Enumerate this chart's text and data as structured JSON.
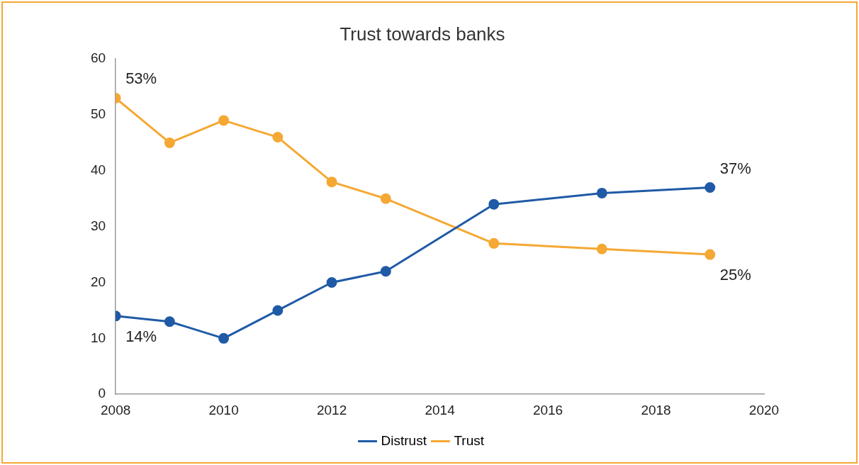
{
  "chart_data": {
    "type": "line",
    "title": "Trust towards banks",
    "x": [
      2008,
      2009,
      2010,
      2011,
      2012,
      2013,
      2015,
      2017,
      2019
    ],
    "series": [
      {
        "name": "Distrust",
        "color": "#1f5aa6",
        "values": [
          14,
          13,
          10,
          15,
          20,
          22,
          34,
          36,
          37
        ],
        "value_labels": [
          "14%",
          null,
          null,
          null,
          null,
          null,
          null,
          null,
          "37%"
        ]
      },
      {
        "name": "Trust",
        "color": "#f5a833",
        "values": [
          53,
          45,
          49,
          46,
          38,
          35,
          27,
          26,
          25
        ],
        "value_labels": [
          "53%",
          null,
          null,
          null,
          null,
          null,
          null,
          null,
          "25%"
        ]
      }
    ],
    "xlim": [
      2008,
      2020
    ],
    "xticks": [
      2008,
      2010,
      2012,
      2014,
      2016,
      2018,
      2020
    ],
    "ylim": [
      0,
      60
    ],
    "yticks": [
      0,
      10,
      20,
      30,
      40,
      50,
      60
    ],
    "grid": false,
    "legend": "bottom",
    "marker": "circle",
    "line_style": "solid"
  }
}
